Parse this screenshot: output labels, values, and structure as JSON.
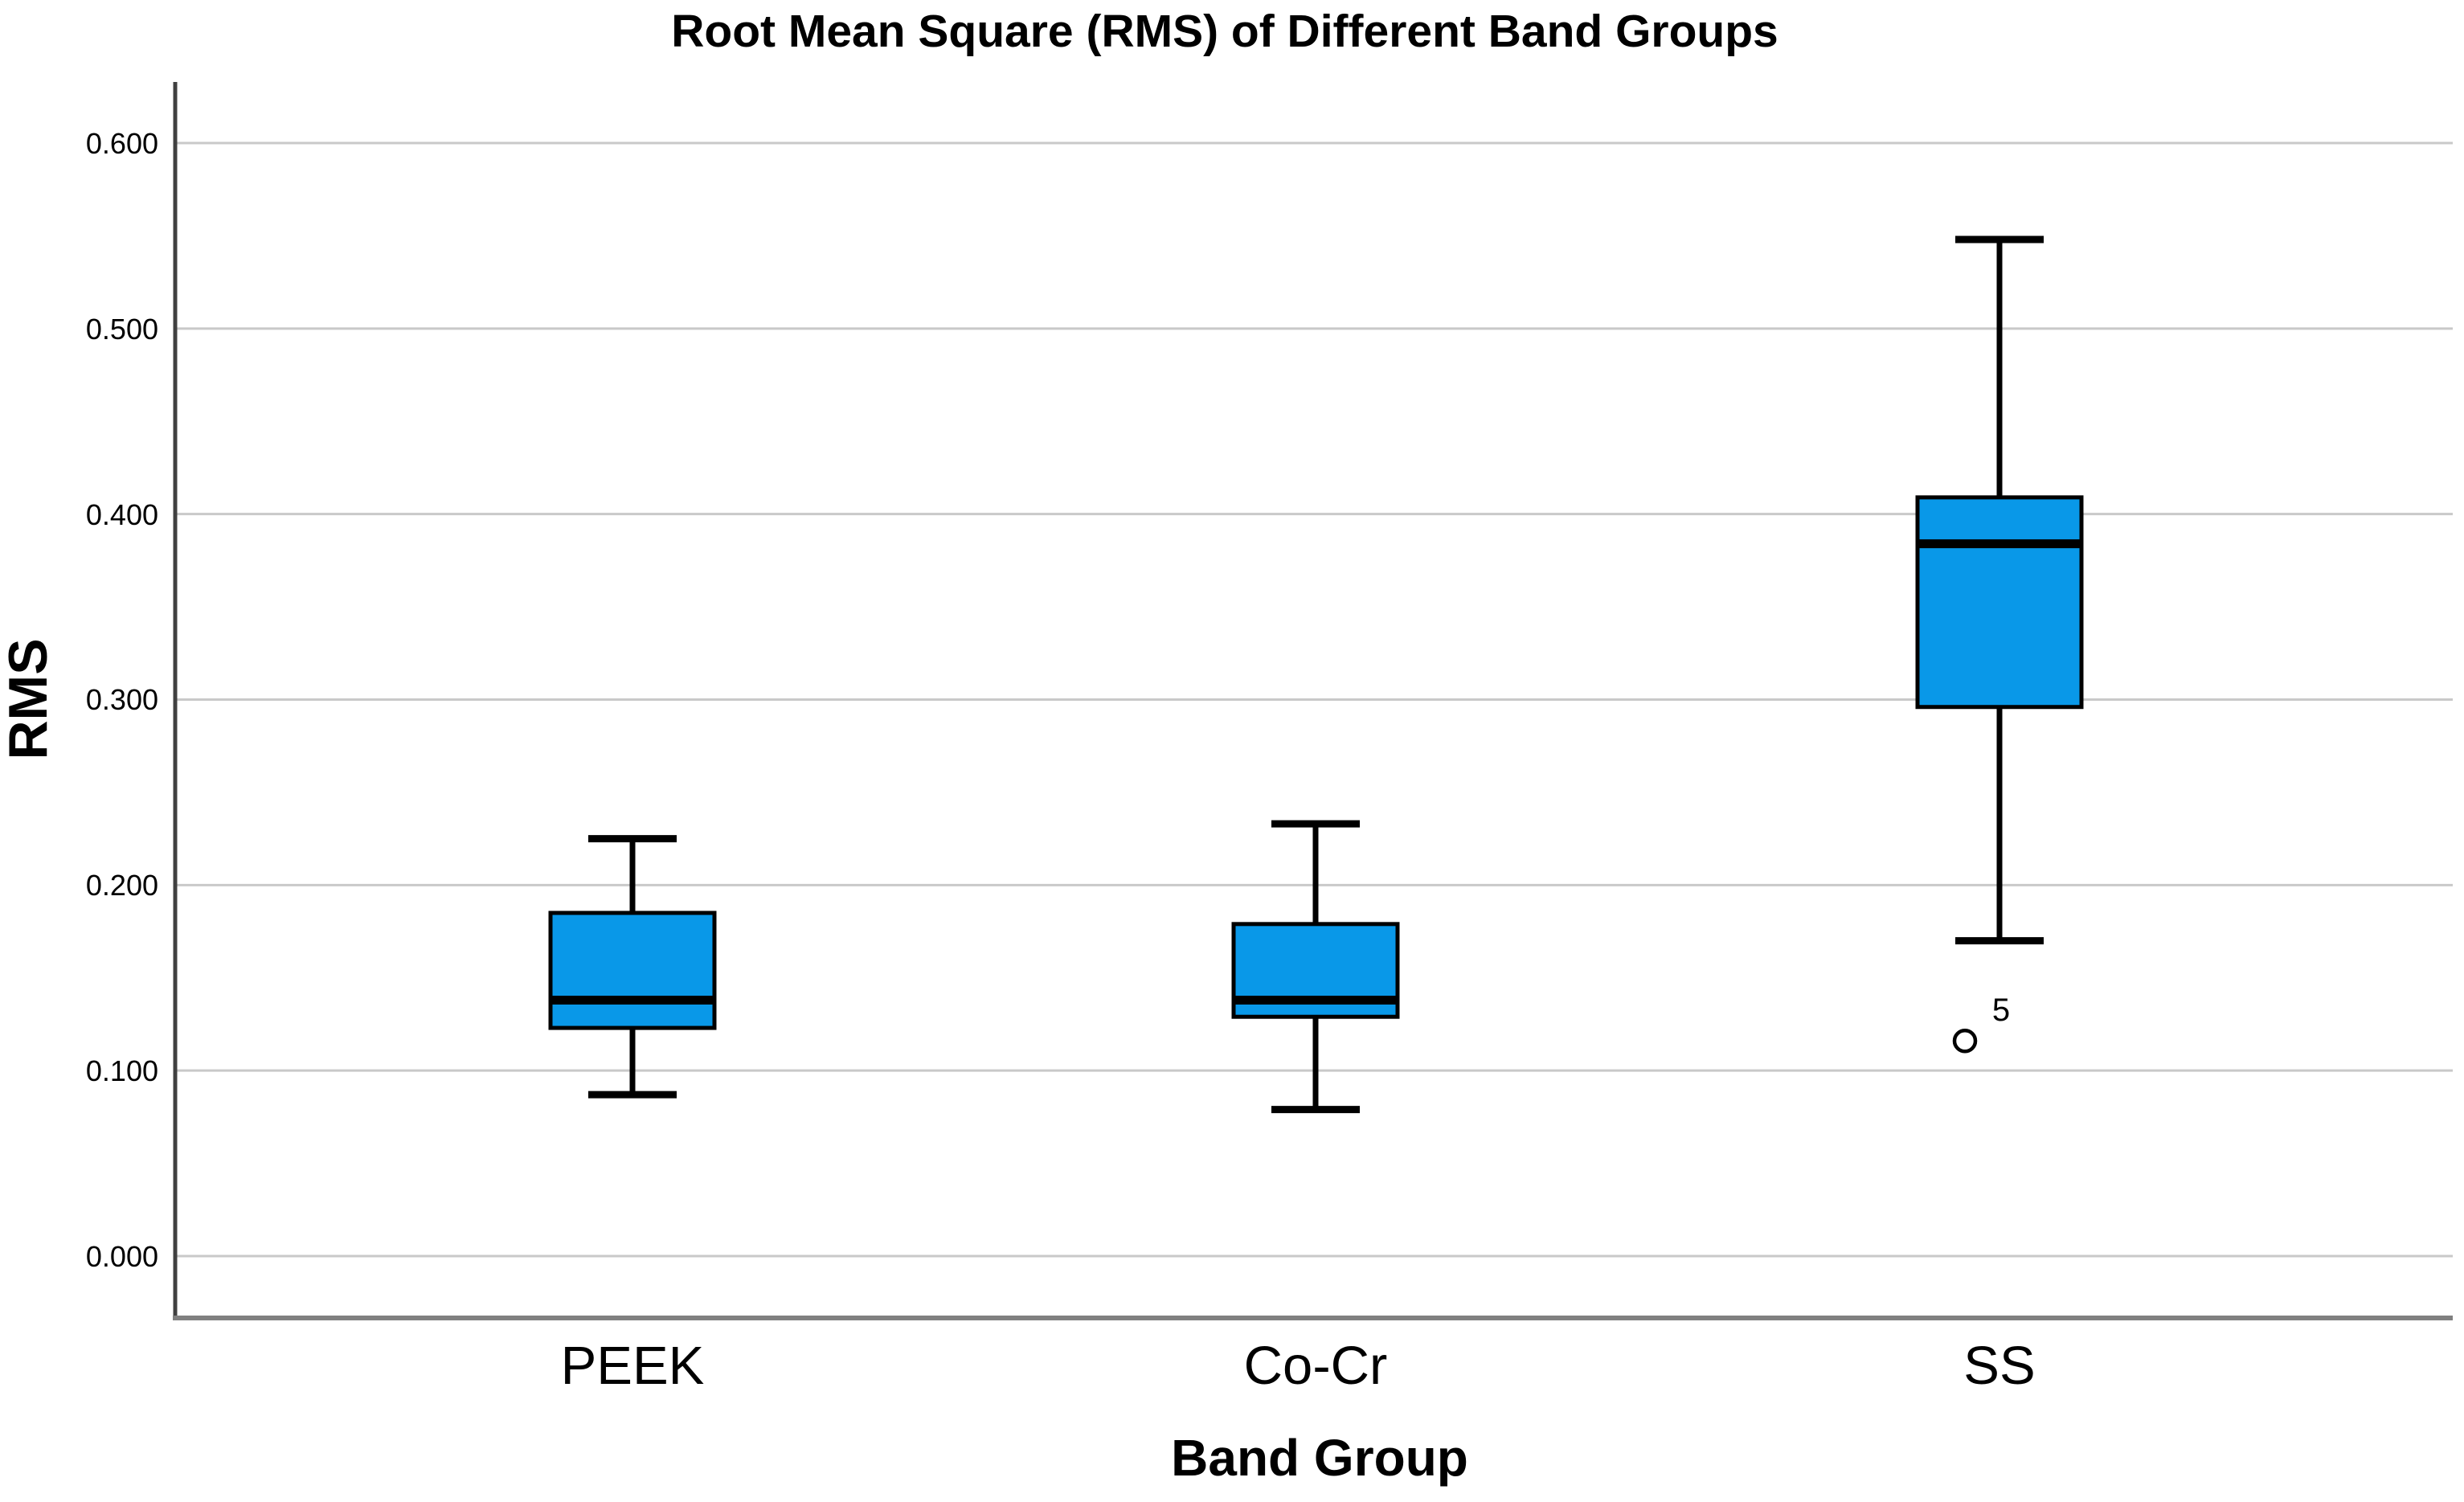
{
  "chart_data": {
    "type": "box",
    "title": "Root Mean Square (RMS) of Different Band Groups",
    "xlabel": "Band Group",
    "ylabel": "RMS",
    "categories": [
      "PEEK",
      "Co-Cr",
      "SS"
    ],
    "y_axis": {
      "min": 0.0,
      "max": 0.6,
      "tick_step": 0.1,
      "tick_labels": [
        "0.000",
        "0.100",
        "0.200",
        "0.300",
        "0.400",
        "0.500",
        "0.600"
      ]
    },
    "grid": "horizontal-only",
    "legend": "none",
    "boxes": [
      {
        "category": "PEEK",
        "whisker_low": 0.087,
        "q1": 0.123,
        "median": 0.138,
        "q3": 0.185,
        "whisker_high": 0.225,
        "outliers": []
      },
      {
        "category": "Co-Cr",
        "whisker_low": 0.079,
        "q1": 0.129,
        "median": 0.138,
        "q3": 0.179,
        "whisker_high": 0.233,
        "outliers": []
      },
      {
        "category": "SS",
        "whisker_low": 0.17,
        "q1": 0.296,
        "median": 0.384,
        "q3": 0.409,
        "whisker_high": 0.548,
        "outliers": [
          {
            "value": 0.116,
            "label": "5"
          }
        ]
      }
    ],
    "colors": {
      "box_fill": "#0998e8",
      "box_stroke": "#000000",
      "median_line": "#000000",
      "whisker": "#000000",
      "outlier_stroke": "#000000",
      "outlier_fill": "#ffffff",
      "gridline": "#c9c9c9",
      "y_axis_line": "#404040",
      "x_axis_line": "#808080",
      "text": "#000000",
      "background": "#ffffff"
    }
  }
}
